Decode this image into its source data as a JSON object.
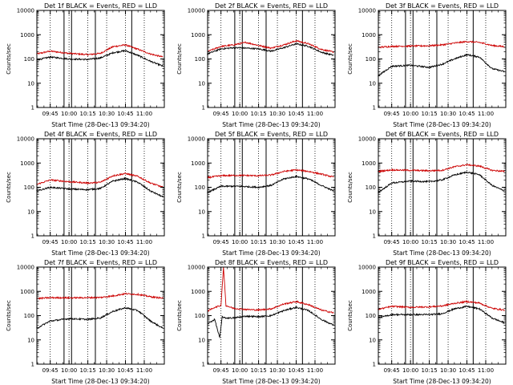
{
  "figure": {
    "background": "#ffffff",
    "colors": {
      "events": "#000000",
      "lld": "#cc0000",
      "axes": "#000000"
    }
  },
  "chart_data": [
    {
      "type": "line",
      "title": "Det 1f BLACK = Events, RED = LLD",
      "ylabel": "Counts/sec",
      "xlabel": "Start Time (28-Dec-13 09:34:20)",
      "yscale": "log",
      "ylim": [
        1,
        10000
      ],
      "ytick_labels": [
        "1",
        "10",
        "100",
        "1000",
        "10000"
      ],
      "xlim": [
        "09:34:20",
        "11:16:00"
      ],
      "xtick_labels": [
        "09:45",
        "10:00",
        "10:15",
        "10:30",
        "10:45",
        "11:00"
      ],
      "vlines_solid": [
        "09:56",
        "10:02",
        "10:21",
        "10:50"
      ],
      "vlines_dotted": [
        "09:45",
        "10:00",
        "10:15",
        "10:30",
        "10:45",
        "11:00"
      ],
      "series": [
        {
          "name": "LLD",
          "color": "#cc0000",
          "x": [
            "09:34",
            "09:45",
            "10:00",
            "10:15",
            "10:25",
            "10:35",
            "10:45",
            "10:55",
            "11:05",
            "11:15"
          ],
          "values": [
            160,
            210,
            170,
            150,
            170,
            320,
            380,
            250,
            160,
            120
          ]
        },
        {
          "name": "Events",
          "color": "#000000",
          "x": [
            "09:34",
            "09:45",
            "10:00",
            "10:15",
            "10:25",
            "10:35",
            "10:45",
            "10:55",
            "11:05",
            "11:15"
          ],
          "values": [
            90,
            120,
            100,
            95,
            110,
            180,
            220,
            140,
            80,
            50
          ]
        }
      ]
    },
    {
      "type": "line",
      "title": "Det 2f BLACK = Events, RED = LLD",
      "ylabel": "Counts/sec",
      "xlabel": "Start Time (28-Dec-13 09:34:20)",
      "yscale": "log",
      "ylim": [
        1,
        10000
      ],
      "ytick_labels": [
        "1",
        "10",
        "100",
        "1000",
        "10000"
      ],
      "xlim": [
        "09:34:20",
        "11:16:00"
      ],
      "xtick_labels": [
        "09:45",
        "10:00",
        "10:15",
        "10:30",
        "10:45",
        "11:00"
      ],
      "vlines_solid": [
        "09:56",
        "10:02",
        "10:21",
        "10:50"
      ],
      "vlines_dotted": [
        "09:45",
        "10:00",
        "10:15",
        "10:30",
        "10:45",
        "11:00"
      ],
      "series": [
        {
          "name": "LLD",
          "color": "#cc0000",
          "x": [
            "09:34",
            "09:45",
            "09:55",
            "10:05",
            "10:15",
            "10:25",
            "10:35",
            "10:45",
            "10:55",
            "11:05",
            "11:15"
          ],
          "values": [
            200,
            330,
            380,
            480,
            360,
            280,
            380,
            560,
            420,
            250,
            190
          ]
        },
        {
          "name": "Events",
          "color": "#000000",
          "x": [
            "09:34",
            "09:45",
            "09:55",
            "10:05",
            "10:15",
            "10:25",
            "10:35",
            "10:45",
            "10:55",
            "11:05",
            "11:15"
          ],
          "values": [
            160,
            260,
            290,
            280,
            260,
            210,
            290,
            420,
            330,
            190,
            140
          ]
        }
      ]
    },
    {
      "type": "line",
      "title": "Det 3f BLACK = Events, RED = LLD",
      "ylabel": "Counts/sec",
      "xlabel": "Start Time (28-Dec-13 09:34:20)",
      "yscale": "log",
      "ylim": [
        1,
        10000
      ],
      "ytick_labels": [
        "1",
        "10",
        "100",
        "1000",
        "10000"
      ],
      "xlim": [
        "09:34:20",
        "11:16:00"
      ],
      "xtick_labels": [
        "09:45",
        "10:00",
        "10:15",
        "10:30",
        "10:45",
        "11:00"
      ],
      "vlines_solid": [
        "09:56",
        "10:02",
        "10:21",
        "10:50"
      ],
      "vlines_dotted": [
        "09:45",
        "10:00",
        "10:15",
        "10:30",
        "10:45",
        "11:00"
      ],
      "series": [
        {
          "name": "LLD",
          "color": "#cc0000",
          "x": [
            "09:34",
            "09:45",
            "10:00",
            "10:15",
            "10:25",
            "10:35",
            "10:45",
            "10:55",
            "11:05",
            "11:15"
          ],
          "values": [
            300,
            330,
            340,
            350,
            380,
            450,
            520,
            480,
            360,
            320
          ]
        },
        {
          "name": "Events",
          "color": "#000000",
          "x": [
            "09:34",
            "09:45",
            "10:00",
            "10:15",
            "10:25",
            "10:35",
            "10:45",
            "10:55",
            "11:05",
            "11:15"
          ],
          "values": [
            20,
            50,
            55,
            45,
            60,
            100,
            150,
            120,
            40,
            30
          ]
        }
      ]
    },
    {
      "type": "line",
      "title": "Det 4f BLACK = Events, RED = LLD",
      "ylabel": "Counts/sec",
      "xlabel": "Start Time (28-Dec-13 09:34:20)",
      "yscale": "log",
      "ylim": [
        1,
        10000
      ],
      "ytick_labels": [
        "1",
        "10",
        "100",
        "1000",
        "10000"
      ],
      "xlim": [
        "09:34:20",
        "11:16:00"
      ],
      "xtick_labels": [
        "09:45",
        "10:00",
        "10:15",
        "10:30",
        "10:45",
        "11:00"
      ],
      "vlines_solid": [
        "09:56",
        "10:02",
        "10:21",
        "10:50"
      ],
      "vlines_dotted": [
        "09:45",
        "10:00",
        "10:15",
        "10:30",
        "10:45",
        "11:00"
      ],
      "series": [
        {
          "name": "LLD",
          "color": "#cc0000",
          "x": [
            "09:34",
            "09:45",
            "10:00",
            "10:15",
            "10:25",
            "10:35",
            "10:45",
            "10:55",
            "11:05",
            "11:15"
          ],
          "values": [
            130,
            200,
            170,
            150,
            160,
            300,
            370,
            280,
            150,
            100
          ]
        },
        {
          "name": "Events",
          "color": "#000000",
          "x": [
            "09:34",
            "09:45",
            "10:00",
            "10:15",
            "10:25",
            "10:35",
            "10:45",
            "10:55",
            "11:05",
            "11:15"
          ],
          "values": [
            70,
            100,
            85,
            80,
            90,
            180,
            230,
            160,
            70,
            40
          ]
        }
      ]
    },
    {
      "type": "line",
      "title": "Det 5f BLACK = Events, RED = LLD",
      "ylabel": "Counts/sec",
      "xlabel": "Start Time (28-Dec-13 09:34:20)",
      "yscale": "log",
      "ylim": [
        1,
        10000
      ],
      "ytick_labels": [
        "1",
        "10",
        "100",
        "1000",
        "10000"
      ],
      "xlim": [
        "09:34:20",
        "11:16:00"
      ],
      "xtick_labels": [
        "09:45",
        "10:00",
        "10:15",
        "10:30",
        "10:45",
        "11:00"
      ],
      "vlines_solid": [
        "09:56",
        "10:02",
        "10:21",
        "10:50"
      ],
      "vlines_dotted": [
        "09:45",
        "10:00",
        "10:15",
        "10:30",
        "10:45",
        "11:00"
      ],
      "series": [
        {
          "name": "LLD",
          "color": "#cc0000",
          "x": [
            "09:34",
            "09:45",
            "10:00",
            "10:15",
            "10:25",
            "10:35",
            "10:45",
            "10:55",
            "11:05",
            "11:15"
          ],
          "values": [
            250,
            300,
            310,
            300,
            320,
            450,
            520,
            450,
            350,
            260
          ]
        },
        {
          "name": "Events",
          "color": "#000000",
          "x": [
            "09:34",
            "09:45",
            "10:00",
            "10:15",
            "10:25",
            "10:35",
            "10:45",
            "10:55",
            "11:05",
            "11:15"
          ],
          "values": [
            60,
            110,
            110,
            100,
            120,
            220,
            280,
            220,
            120,
            70
          ]
        }
      ]
    },
    {
      "type": "line",
      "title": "Det 6f BLACK = Events, RED = LLD",
      "ylabel": "Counts/sec",
      "xlabel": "Start Time (28-Dec-13 09:34:20)",
      "yscale": "log",
      "ylim": [
        1,
        10000
      ],
      "ytick_labels": [
        "1",
        "10",
        "100",
        "1000",
        "10000"
      ],
      "xlim": [
        "09:34:20",
        "11:16:00"
      ],
      "xtick_labels": [
        "09:45",
        "10:00",
        "10:15",
        "10:30",
        "10:45",
        "11:00"
      ],
      "vlines_solid": [
        "09:56",
        "10:02",
        "10:21",
        "10:50"
      ],
      "vlines_dotted": [
        "09:45",
        "10:00",
        "10:15",
        "10:30",
        "10:45",
        "11:00"
      ],
      "series": [
        {
          "name": "LLD",
          "color": "#cc0000",
          "x": [
            "09:34",
            "09:45",
            "10:00",
            "10:15",
            "10:25",
            "10:35",
            "10:45",
            "10:55",
            "11:05",
            "11:15"
          ],
          "values": [
            450,
            520,
            500,
            480,
            500,
            700,
            850,
            750,
            500,
            450
          ]
        },
        {
          "name": "Events",
          "color": "#000000",
          "x": [
            "09:34",
            "09:45",
            "10:00",
            "10:15",
            "10:25",
            "10:35",
            "10:45",
            "10:55",
            "11:05",
            "11:15"
          ],
          "values": [
            60,
            150,
            180,
            170,
            200,
            320,
            420,
            330,
            120,
            70
          ]
        }
      ]
    },
    {
      "type": "line",
      "title": "Det 7f BLACK = Events, RED = LLD",
      "ylabel": "Counts/sec",
      "xlabel": "Start Time (28-Dec-13 09:34:20)",
      "yscale": "log",
      "ylim": [
        1,
        10000
      ],
      "ytick_labels": [
        "1",
        "10",
        "100",
        "1000",
        "10000"
      ],
      "xlim": [
        "09:34:20",
        "11:16:00"
      ],
      "xtick_labels": [
        "09:45",
        "10:00",
        "10:15",
        "10:30",
        "10:45",
        "11:00"
      ],
      "vlines_solid": [
        "09:56",
        "10:02",
        "10:21",
        "10:50"
      ],
      "vlines_dotted": [
        "09:45",
        "10:00",
        "10:15",
        "10:30",
        "10:45",
        "11:00"
      ],
      "series": [
        {
          "name": "LLD",
          "color": "#cc0000",
          "x": [
            "09:34",
            "09:45",
            "10:00",
            "10:15",
            "10:25",
            "10:35",
            "10:45",
            "10:55",
            "11:05",
            "11:15"
          ],
          "values": [
            500,
            550,
            540,
            550,
            560,
            650,
            800,
            750,
            600,
            520
          ]
        },
        {
          "name": "Events",
          "color": "#000000",
          "x": [
            "09:34",
            "09:45",
            "10:00",
            "10:15",
            "10:25",
            "10:35",
            "10:45",
            "10:55",
            "11:05",
            "11:15"
          ],
          "values": [
            30,
            60,
            75,
            70,
            80,
            150,
            210,
            160,
            60,
            30
          ]
        }
      ]
    },
    {
      "type": "line",
      "title": "Det 8f BLACK = Events, RED = LLD",
      "ylabel": "Counts/sec",
      "xlabel": "Start Time (28-Dec-13 09:34:20)",
      "yscale": "log",
      "ylim": [
        1,
        10000
      ],
      "ytick_labels": [
        "1",
        "10",
        "100",
        "1000",
        "10000"
      ],
      "xlim": [
        "09:34:20",
        "11:16:00"
      ],
      "xtick_labels": [
        "09:45",
        "10:00",
        "10:15",
        "10:30",
        "10:45",
        "11:00"
      ],
      "vlines_solid": [
        "09:56",
        "10:02",
        "10:21",
        "10:50"
      ],
      "vlines_dotted": [
        "09:45",
        "10:00",
        "10:15",
        "10:30",
        "10:45",
        "11:00"
      ],
      "series": [
        {
          "name": "LLD",
          "color": "#cc0000",
          "x": [
            "09:34",
            "09:40",
            "09:45",
            "09:47",
            "09:49",
            "09:55",
            "10:05",
            "10:15",
            "10:25",
            "10:35",
            "10:45",
            "10:55",
            "11:05",
            "11:15"
          ],
          "values": [
            150,
            220,
            260,
            10000,
            260,
            200,
            180,
            170,
            190,
            300,
            380,
            280,
            170,
            130
          ]
        },
        {
          "name": "Events",
          "color": "#000000",
          "x": [
            "09:34",
            "09:40",
            "09:44",
            "09:46",
            "09:48",
            "09:55",
            "10:05",
            "10:15",
            "10:25",
            "10:35",
            "10:45",
            "10:55",
            "11:05",
            "11:15"
          ],
          "values": [
            45,
            70,
            12,
            90,
            80,
            80,
            95,
            90,
            100,
            160,
            220,
            160,
            70,
            40
          ]
        }
      ]
    },
    {
      "type": "line",
      "title": "Det 9f BLACK = Events, RED = LLD",
      "ylabel": "Counts/sec",
      "xlabel": "Start Time (28-Dec-13 09:34:20)",
      "yscale": "log",
      "ylim": [
        1,
        10000
      ],
      "ytick_labels": [
        "1",
        "10",
        "100",
        "1000",
        "10000"
      ],
      "xlim": [
        "09:34:20",
        "11:16:00"
      ],
      "xtick_labels": [
        "09:45",
        "10:00",
        "10:15",
        "10:30",
        "10:45",
        "11:00"
      ],
      "vlines_solid": [
        "09:56",
        "10:02",
        "10:21",
        "10:50"
      ],
      "vlines_dotted": [
        "09:45",
        "10:00",
        "10:15",
        "10:30",
        "10:45",
        "11:00"
      ],
      "series": [
        {
          "name": "LLD",
          "color": "#cc0000",
          "x": [
            "09:34",
            "09:45",
            "10:00",
            "10:15",
            "10:25",
            "10:35",
            "10:45",
            "10:55",
            "11:05",
            "11:15"
          ],
          "values": [
            180,
            240,
            220,
            230,
            250,
            320,
            380,
            330,
            200,
            170
          ]
        },
        {
          "name": "Events",
          "color": "#000000",
          "x": [
            "09:34",
            "09:45",
            "10:00",
            "10:15",
            "10:25",
            "10:35",
            "10:45",
            "10:55",
            "11:05",
            "11:15"
          ],
          "values": [
            80,
            110,
            110,
            110,
            120,
            190,
            240,
            190,
            80,
            50
          ]
        }
      ]
    }
  ]
}
